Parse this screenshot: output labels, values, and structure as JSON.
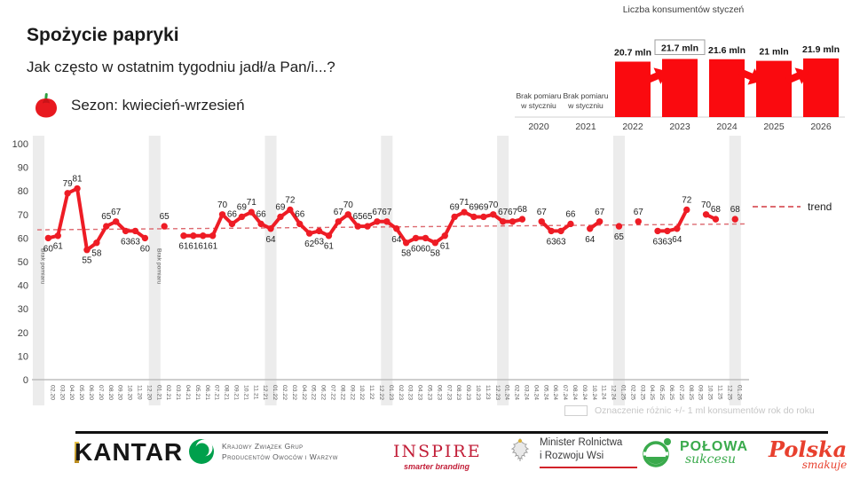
{
  "header": {
    "title": "Spożycie papryki",
    "question": "Jak często w ostatnim tygodniu jadł/a Pan/i...?",
    "season": "Sezon: kwiecień-wrzesień"
  },
  "colors": {
    "red": "#ee1c25",
    "bar_red": "#fa0a0f",
    "trend": "#dd6a70",
    "band": "#ececec",
    "axis": "#bdbdbd",
    "tick_text": "#3f3f3f",
    "small_text": "#595959",
    "label_text": "#1f1f1f",
    "green": "#00a04c",
    "ministry_red": "#d2232a"
  },
  "legend": {
    "trend": "trend",
    "diff": "Oznaczenie różnic +/- 1 ml konsumentów rok do roku"
  },
  "chart_data": [
    {
      "type": "line",
      "title": "Spożycie papryki",
      "question": "Jak często w ostatnim tygodniu jadł/a Pan/i...?",
      "ylim": [
        0,
        100
      ],
      "yticks": [
        0,
        10,
        20,
        30,
        40,
        50,
        60,
        70,
        80,
        90,
        100
      ],
      "x": [
        "",
        "02.20",
        "03.20",
        "04.20",
        "05.20",
        "06.20",
        "07.20",
        "08.20",
        "09.20",
        "10.20",
        "11.20",
        "12.20",
        "01.21",
        "02.21",
        "03.21",
        "04.21",
        "05.21",
        "06.21",
        "07.21",
        "08.21",
        "09.21",
        "10.21",
        "11.21",
        "12.21",
        "01.22",
        "02.22",
        "03.22",
        "04.22",
        "05.22",
        "06.22",
        "07.22",
        "08.22",
        "09.22",
        "10.22",
        "11.22",
        "12.22",
        "01.23",
        "02.23",
        "03.23",
        "04.23",
        "05.23",
        "06.23",
        "07.23",
        "08.23",
        "09.23",
        "10.23",
        "11.23",
        "12.23",
        "01.24",
        "02.24",
        "03.24",
        "04.24",
        "05.24",
        "06.24",
        "07.24",
        "08.24",
        "09.24",
        "10.24",
        "11.24",
        "12.24",
        "01.25",
        "02.25",
        "03.25",
        "04.25",
        "05.25",
        "06.25",
        "07.25",
        "08.25",
        "09.25",
        "10.25",
        "11.25",
        "12.25",
        "01.26"
      ],
      "values": [
        null,
        60,
        61,
        79,
        81,
        55,
        58,
        65,
        67,
        63,
        63,
        60,
        null,
        65,
        null,
        61,
        61,
        61,
        61,
        70,
        66,
        69,
        71,
        66,
        64,
        69,
        72,
        66,
        62,
        63,
        61,
        67,
        70,
        65,
        65,
        67,
        67,
        64,
        58,
        60,
        60,
        58,
        61,
        69,
        71,
        69,
        69,
        70,
        67,
        67,
        68,
        null,
        67,
        63,
        63,
        66,
        null,
        64,
        67,
        null,
        65,
        null,
        67,
        null,
        63,
        63,
        64,
        72,
        null,
        70,
        68,
        null,
        68
      ],
      "label_side": [
        "",
        "b",
        "b",
        "a",
        "a",
        "b",
        "b",
        "a",
        "a",
        "b",
        "b",
        "b",
        "",
        "a",
        "",
        "b",
        "b",
        "b",
        "b",
        "a",
        "a",
        "a",
        "a",
        "a",
        "b",
        "a",
        "a",
        "a",
        "b",
        "b",
        "b",
        "a",
        "a",
        "a",
        "a",
        "a",
        "a",
        "b",
        "b",
        "b",
        "b",
        "b",
        "b",
        "a",
        "a",
        "a",
        "a",
        "a",
        "a",
        "a",
        "a",
        "",
        "a",
        "b",
        "b",
        "a",
        "",
        "b",
        "a",
        "",
        "b",
        "",
        "a",
        "",
        "b",
        "b",
        "b",
        "a",
        "",
        "a",
        "a",
        "",
        "a"
      ],
      "band_columns": [
        0,
        12,
        24,
        36,
        48,
        60,
        72
      ],
      "no_measure_columns": [
        0,
        12
      ],
      "no_measure_text": "Brak pomiaru",
      "trend": {
        "start": 63.5,
        "end": 66,
        "label": "trend"
      },
      "grid": false,
      "legend_position": "right"
    },
    {
      "type": "bar",
      "title": "Liczba konsumentów styczeń",
      "categories": [
        "2020",
        "2021",
        "2022",
        "2023",
        "2024",
        "2025",
        "2026"
      ],
      "values": [
        null,
        null,
        20.7,
        21.7,
        21.6,
        21,
        21.9
      ],
      "bar_labels": [
        "",
        "",
        "20.7 mln",
        "21.7 mln",
        "21.6 mln",
        "21 mln",
        "21.9 mln"
      ],
      "no_measure_columns": [
        0,
        1
      ],
      "no_measure_lines": [
        "Brak pomiaru",
        "w styczniu"
      ],
      "boxed_label_index": 3,
      "arrows": [
        {
          "from": 2,
          "to": 3,
          "dir": "up"
        },
        {
          "from": 4,
          "to": 5,
          "dir": "down"
        },
        {
          "from": 5,
          "to": 6,
          "dir": "up"
        }
      ]
    }
  ],
  "footer": {
    "kantar": "KANTAR",
    "kzg_line1": "Krajowy Związek Grup",
    "kzg_line2": "Producentów Owoców i Warzyw",
    "inspire": "INSPIRE",
    "inspire_tag": "smarter branding",
    "ministry_line1": "Minister Rolnictwa",
    "ministry_line2": "i Rozwoju Wsi",
    "polowa": "POŁOWA",
    "polowa_tag": "sukcesu",
    "polska": "Polska",
    "polska_tag": "smakuje"
  }
}
